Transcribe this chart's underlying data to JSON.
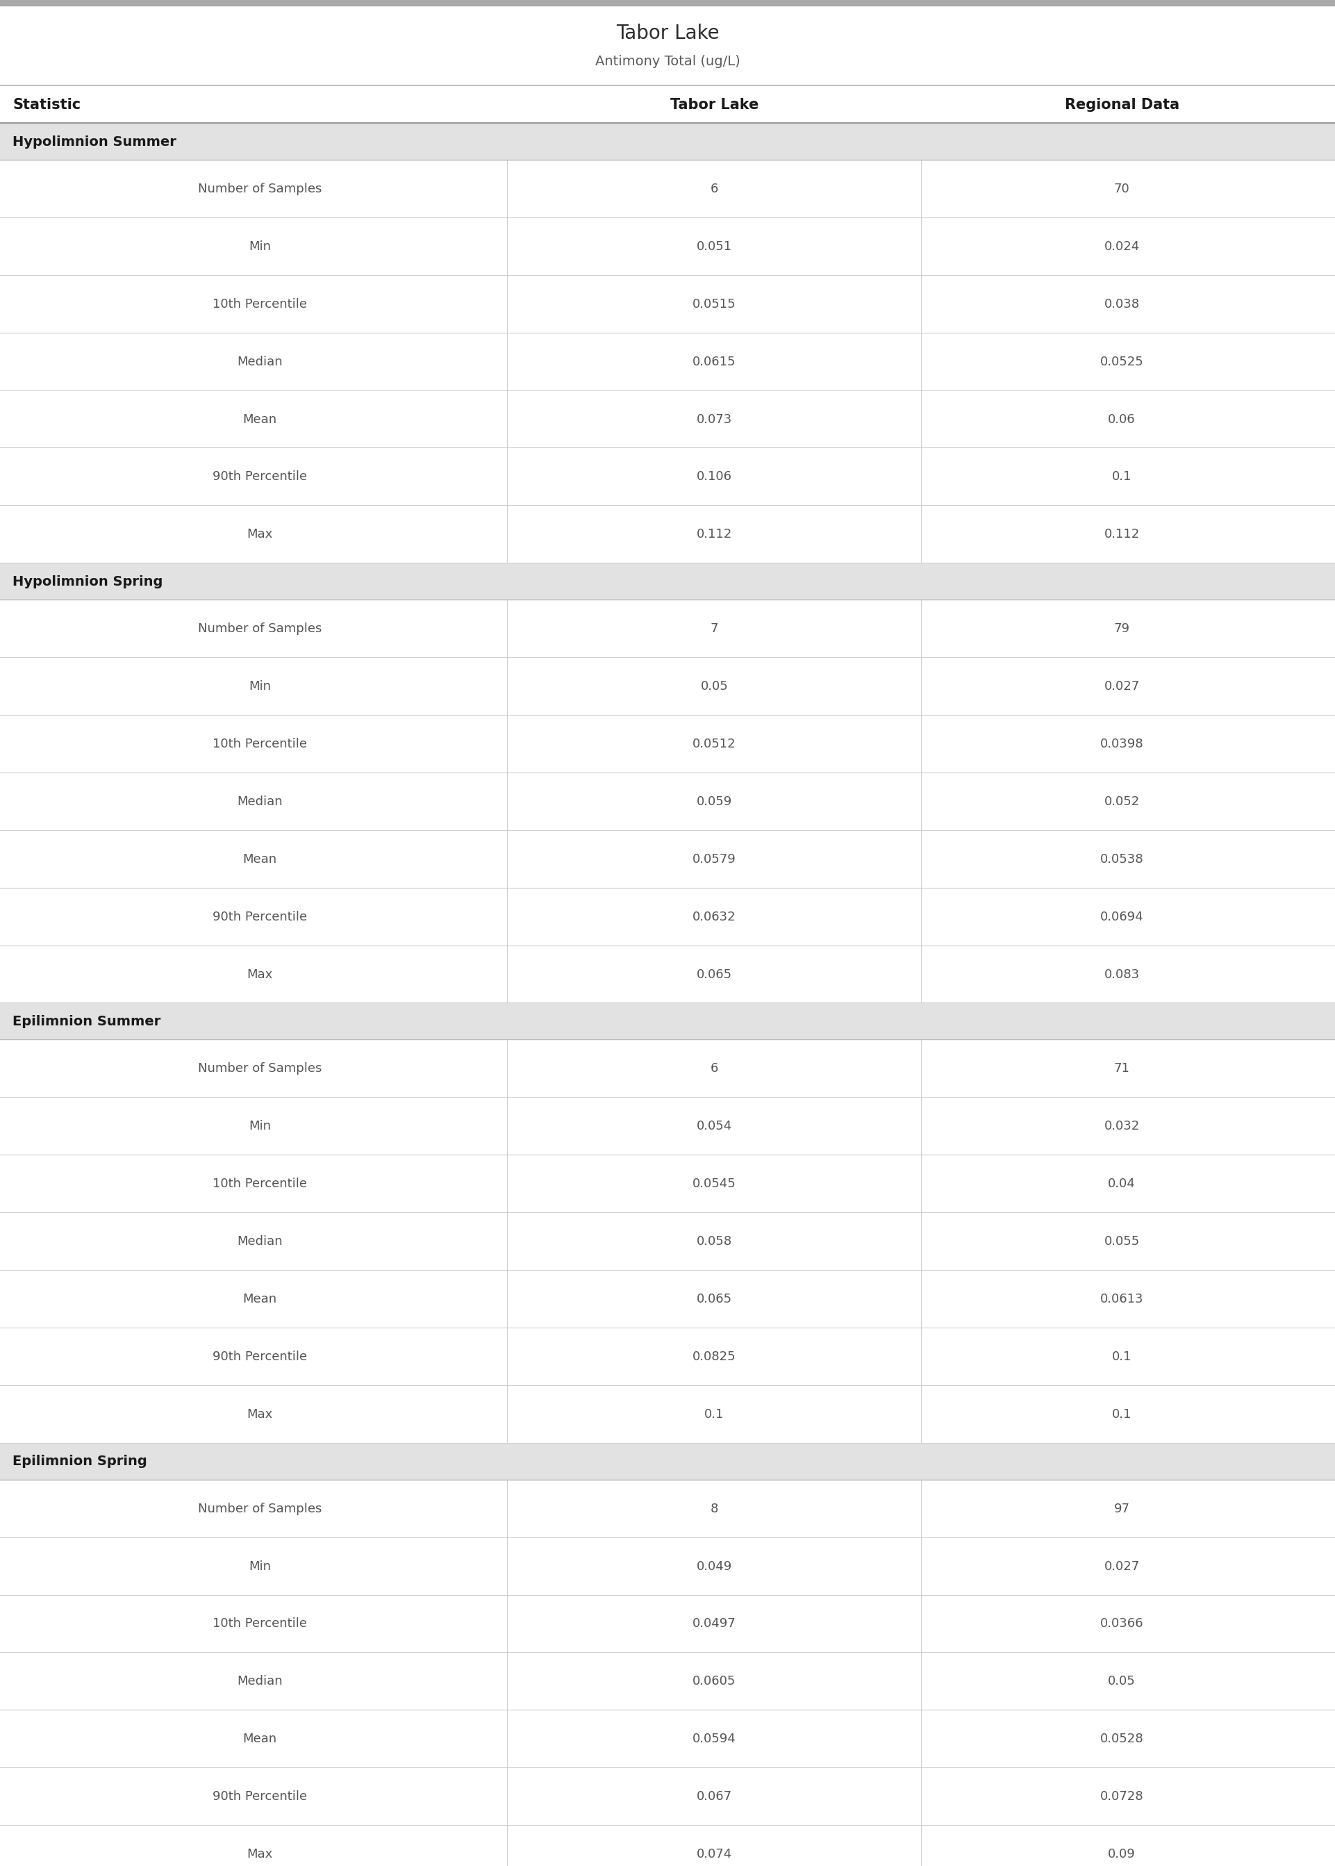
{
  "title": "Tabor Lake",
  "subtitle": "Antimony Total (ug/L)",
  "col_headers": [
    "Statistic",
    "Tabor Lake",
    "Regional Data"
  ],
  "sections": [
    {
      "name": "Hypolimnion Summer",
      "rows": [
        [
          "Number of Samples",
          "6",
          "70"
        ],
        [
          "Min",
          "0.051",
          "0.024"
        ],
        [
          "10th Percentile",
          "0.0515",
          "0.038"
        ],
        [
          "Median",
          "0.0615",
          "0.0525"
        ],
        [
          "Mean",
          "0.073",
          "0.06"
        ],
        [
          "90th Percentile",
          "0.106",
          "0.1"
        ],
        [
          "Max",
          "0.112",
          "0.112"
        ]
      ]
    },
    {
      "name": "Hypolimnion Spring",
      "rows": [
        [
          "Number of Samples",
          "7",
          "79"
        ],
        [
          "Min",
          "0.05",
          "0.027"
        ],
        [
          "10th Percentile",
          "0.0512",
          "0.0398"
        ],
        [
          "Median",
          "0.059",
          "0.052"
        ],
        [
          "Mean",
          "0.0579",
          "0.0538"
        ],
        [
          "90th Percentile",
          "0.0632",
          "0.0694"
        ],
        [
          "Max",
          "0.065",
          "0.083"
        ]
      ]
    },
    {
      "name": "Epilimnion Summer",
      "rows": [
        [
          "Number of Samples",
          "6",
          "71"
        ],
        [
          "Min",
          "0.054",
          "0.032"
        ],
        [
          "10th Percentile",
          "0.0545",
          "0.04"
        ],
        [
          "Median",
          "0.058",
          "0.055"
        ],
        [
          "Mean",
          "0.065",
          "0.0613"
        ],
        [
          "90th Percentile",
          "0.0825",
          "0.1"
        ],
        [
          "Max",
          "0.1",
          "0.1"
        ]
      ]
    },
    {
      "name": "Epilimnion Spring",
      "rows": [
        [
          "Number of Samples",
          "8",
          "97"
        ],
        [
          "Min",
          "0.049",
          "0.027"
        ],
        [
          "10th Percentile",
          "0.0497",
          "0.0366"
        ],
        [
          "Median",
          "0.0605",
          "0.05"
        ],
        [
          "Mean",
          "0.0594",
          "0.0528"
        ],
        [
          "90th Percentile",
          "0.067",
          "0.0728"
        ],
        [
          "Max",
          "0.074",
          "0.09"
        ]
      ]
    }
  ],
  "title_color": "#2c2c2c",
  "subtitle_color": "#5a5a5a",
  "header_text_color": "#1a1a1a",
  "section_bg_color": "#e2e2e2",
  "section_text_color": "#1a1a1a",
  "statistic_text_color": "#555555",
  "value_text_color": "#555555",
  "row_bg_white": "#ffffff",
  "header_bg": "#ffffff",
  "line_color": "#d0d0d0",
  "top_bar_color": "#aaaaaa",
  "col_split1": 0.38,
  "col_split2": 0.69,
  "title_fontsize": 20,
  "subtitle_fontsize": 14,
  "header_fontsize": 15,
  "section_fontsize": 14,
  "data_fontsize": 13
}
